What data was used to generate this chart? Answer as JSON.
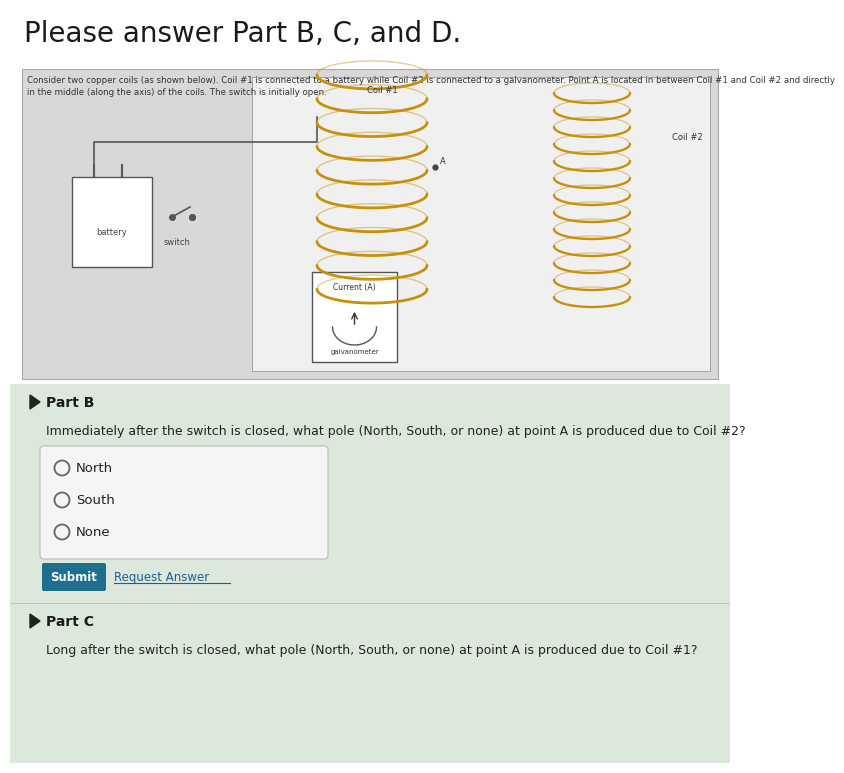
{
  "title": "Please answer Part B, C, and D.",
  "title_fontsize": 20,
  "title_color": "#1a1a1a",
  "bg_color": "#ffffff",
  "description_line1": "Consider two copper coils (as shown below). Coil #1 is connected to a battery while Coil #2 is connected to a galvanometer. Point A is located in between Coil #1 and Coil #2 and directly",
  "description_line2": "in the middle (along the axis) of the coils. The switch is initially open.",
  "desc_fontsize": 6.2,
  "desc_color": "#333333",
  "diagram_outer_bg": "#d8d8d8",
  "diagram_inner_bg": "#f0f0f0",
  "coil_color": "#c8900a",
  "coil1_label": "Coil #1",
  "coil2_label": "Coil #2",
  "battery_label": "battery",
  "switch_label": "switch",
  "galv_label": "galvanometer",
  "current_label": "Current (A)",
  "point_a_label": "A",
  "part_b_label": "Part B",
  "part_b_question": "Immediately after the switch is closed, what pole (North, South, or none) at point A is produced due to Coil #2?",
  "part_b_options": [
    "North",
    "South",
    "None"
  ],
  "part_c_label": "Part C",
  "part_c_question": "Long after the switch is closed, what pole (North, South, or none) at point A is produced due to Coil #1?",
  "submit_bg": "#1e6e8e",
  "submit_text": "Submit",
  "request_text": "Request Answer",
  "request_color": "#1a5f9a",
  "grid_bg": "#dce8dc",
  "grid_line_color": "#c8d8c8",
  "option_box_bg": "#f5f5f5",
  "option_box_border": "#bbbbbb",
  "section_divider": "#bbbbbb",
  "part_label_fontsize": 10,
  "question_fontsize": 9,
  "option_fontsize": 9.5,
  "submit_fontsize": 8.5,
  "link_fontsize": 8.5
}
